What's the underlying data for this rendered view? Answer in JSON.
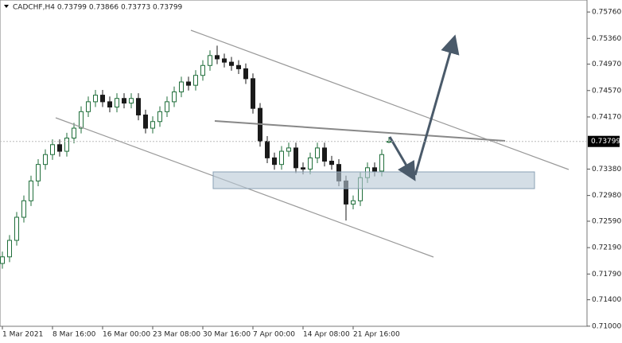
{
  "chart_data": {
    "type": "candlestick",
    "title": "CADCHF,H4  0.73799 0.73866 0.73773 0.73799",
    "categories": [
      "1 Mar 2021",
      null,
      null,
      null,
      null,
      null,
      null,
      "8 Mar 16:00",
      null,
      null,
      null,
      null,
      null,
      null,
      "16 Mar 00:00",
      null,
      null,
      null,
      null,
      null,
      null,
      "23 Mar 08:00",
      null,
      null,
      null,
      null,
      null,
      null,
      "30 Mar 16:00",
      null,
      null,
      null,
      null,
      null,
      null,
      "7 Apr 00:00",
      null,
      null,
      null,
      null,
      null,
      null,
      "14 Apr 08:00",
      null,
      null,
      null,
      null,
      null,
      null,
      "21 Apr 16:00",
      null,
      null,
      null,
      null,
      null
    ],
    "open": [
      0.7195,
      0.7205,
      0.723,
      0.7265,
      0.729,
      0.732,
      0.7345,
      0.736,
      0.7375,
      0.7365,
      0.7385,
      0.74,
      0.7425,
      0.744,
      0.745,
      0.744,
      0.7432,
      0.7445,
      0.7438,
      0.7445,
      0.742,
      0.74,
      0.741,
      0.7425,
      0.744,
      0.7455,
      0.747,
      0.7465,
      0.748,
      0.7495,
      0.751,
      0.7505,
      0.75,
      0.7495,
      0.749,
      0.7475,
      0.743,
      0.738,
      0.7355,
      0.7345,
      0.7365,
      0.737,
      0.734,
      0.7338,
      0.7355,
      0.737,
      0.735,
      0.7345,
      0.732,
      0.7285,
      0.729,
      0.7325,
      0.734,
      0.7335,
      0.73799
    ],
    "high": [
      0.7213,
      0.7238,
      0.7273,
      0.7298,
      0.7328,
      0.7353,
      0.7368,
      0.7383,
      0.7383,
      0.7393,
      0.7408,
      0.7433,
      0.7448,
      0.7458,
      0.7458,
      0.7448,
      0.7453,
      0.7453,
      0.7453,
      0.7453,
      0.7428,
      0.7418,
      0.7433,
      0.7448,
      0.7463,
      0.7478,
      0.7478,
      0.7488,
      0.7503,
      0.7518,
      0.7525,
      0.7513,
      0.7508,
      0.7503,
      0.7498,
      0.7483,
      0.7438,
      0.7388,
      0.7363,
      0.7373,
      0.7378,
      0.7378,
      0.7348,
      0.7363,
      0.7378,
      0.7378,
      0.7358,
      0.7353,
      0.7328,
      0.7298,
      0.7333,
      0.7348,
      0.7348,
      0.7368,
      0.73866
    ],
    "low": [
      0.7187,
      0.7197,
      0.7222,
      0.7257,
      0.7282,
      0.7312,
      0.7337,
      0.7352,
      0.7357,
      0.7357,
      0.7377,
      0.7392,
      0.7417,
      0.7432,
      0.7432,
      0.7424,
      0.7424,
      0.743,
      0.743,
      0.7412,
      0.7392,
      0.7392,
      0.7402,
      0.7417,
      0.7432,
      0.7447,
      0.7457,
      0.7457,
      0.7472,
      0.7487,
      0.7497,
      0.7492,
      0.7487,
      0.7482,
      0.7467,
      0.7422,
      0.7372,
      0.7347,
      0.7337,
      0.7337,
      0.7357,
      0.7332,
      0.733,
      0.733,
      0.7347,
      0.7342,
      0.7337,
      0.7312,
      0.726,
      0.7277,
      0.7282,
      0.7317,
      0.7327,
      0.7327,
      0.73773
    ],
    "close": [
      0.7205,
      0.723,
      0.7265,
      0.729,
      0.732,
      0.7345,
      0.736,
      0.7375,
      0.7365,
      0.7385,
      0.74,
      0.7425,
      0.744,
      0.745,
      0.744,
      0.7432,
      0.7445,
      0.7438,
      0.7445,
      0.742,
      0.74,
      0.741,
      0.7425,
      0.744,
      0.7455,
      0.747,
      0.7465,
      0.748,
      0.7495,
      0.751,
      0.7505,
      0.75,
      0.7495,
      0.749,
      0.7475,
      0.743,
      0.738,
      0.7355,
      0.7345,
      0.7365,
      0.737,
      0.734,
      0.7338,
      0.7355,
      0.737,
      0.735,
      0.7345,
      0.732,
      0.7285,
      0.729,
      0.7325,
      0.734,
      0.7335,
      0.736,
      0.73799
    ],
    "up_color": "#1f6e3a",
    "down_color": "#1a1a1a",
    "last_price": 0.73799,
    "ylim": [
      0.70998,
      0.75942
    ],
    "yticks": [
      {
        "value": 0.7576,
        "label": "0.75760"
      },
      {
        "value": 0.7536,
        "label": "0.75360"
      },
      {
        "value": 0.7497,
        "label": "0.74970"
      },
      {
        "value": 0.7457,
        "label": "0.74570"
      },
      {
        "value": 0.7417,
        "label": "0.74170"
      },
      {
        "value": 0.7338,
        "label": "0.73380"
      },
      {
        "value": 0.7298,
        "label": "0.72980"
      },
      {
        "value": 0.7259,
        "label": "0.72590"
      },
      {
        "value": 0.7219,
        "label": "0.72190"
      },
      {
        "value": 0.7179,
        "label": "0.71790"
      },
      {
        "value": 0.714,
        "label": "0.71400"
      },
      {
        "value": 0.71,
        "label": "0.71000"
      }
    ]
  }
}
